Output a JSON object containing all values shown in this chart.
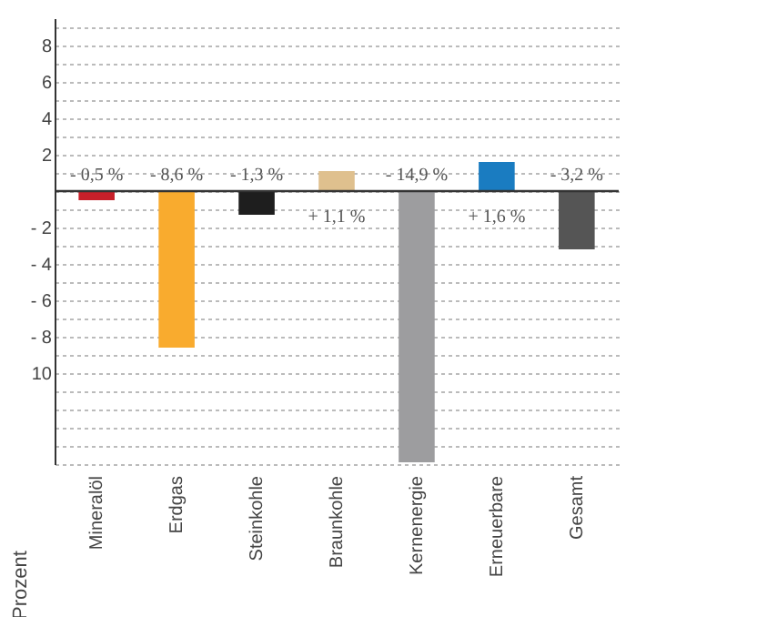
{
  "chart_data": {
    "type": "bar",
    "ylabel": "Prozent",
    "categories": [
      "Mineralöl",
      "Erdgas",
      "Steinkohle",
      "Braunkohle",
      "Kernenergie",
      "Erneuerbare",
      "Gesamt"
    ],
    "values": [
      -0.5,
      -8.6,
      -1.3,
      1.1,
      -14.9,
      1.6,
      -3.2
    ],
    "colors": [
      "#c8202a",
      "#f9ab2e",
      "#1e1e1e",
      "#dfc08e",
      "#9d9d9f",
      "#1a7cc1",
      "#555555"
    ],
    "value_labels": [
      "- 0,5 %",
      "- 8,6 %",
      "- 1,3 %",
      "+ 1,1 %",
      "- 14,9 %",
      "+ 1,6 %",
      "- 3,2 %"
    ],
    "ylim": [
      -15,
      9.5
    ],
    "yticks": [
      {
        "value": 9,
        "label": null
      },
      8,
      {
        "value": 7,
        "label": null
      },
      6,
      {
        "value": 5,
        "label": null
      },
      4,
      {
        "value": 3,
        "label": null
      },
      2,
      {
        "value": 1,
        "label": null
      },
      {
        "value": 0,
        "label": null
      },
      {
        "value": -1,
        "label": null
      },
      {
        "value": -2,
        "label": "- 2"
      },
      {
        "value": -3,
        "label": null
      },
      {
        "value": -4,
        "label": "- 4"
      },
      {
        "value": -5,
        "label": null
      },
      {
        "value": -6,
        "label": "- 6"
      },
      {
        "value": -7,
        "label": null
      },
      {
        "value": -8,
        "label": "- 8"
      },
      {
        "value": -9,
        "label": null
      },
      {
        "value": -10,
        "label": "10"
      },
      {
        "value": -11,
        "label": null
      },
      {
        "value": -12,
        "label": null
      },
      {
        "value": -13,
        "label": null
      },
      {
        "value": -14,
        "label": null
      },
      {
        "value": -15,
        "label": null
      }
    ],
    "ref_lines": [
      {
        "axis": "y",
        "value": 0,
        "color": "#333333"
      }
    ],
    "grid": "y"
  }
}
